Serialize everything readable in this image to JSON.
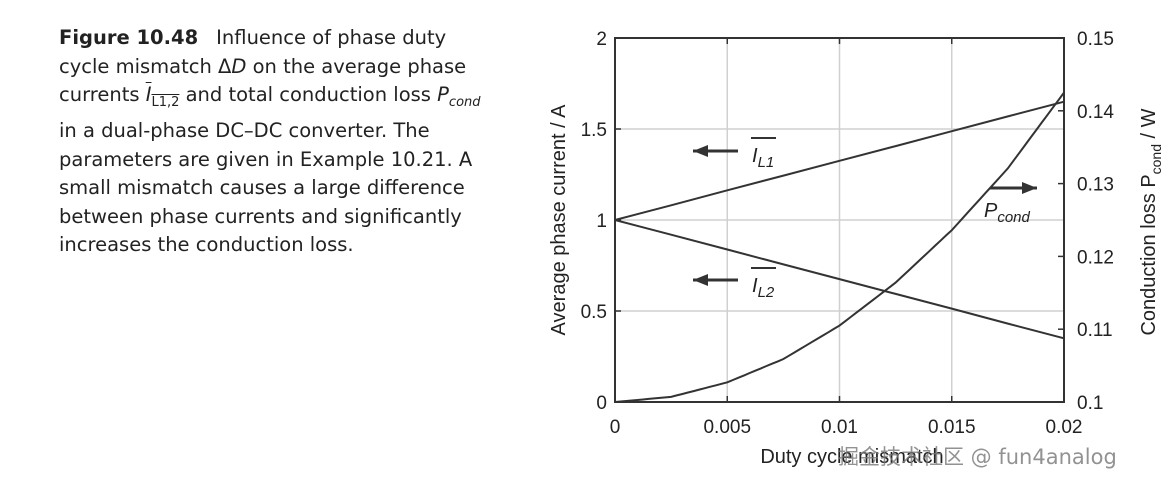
{
  "caption": {
    "figure_label": "Figure 10.48",
    "l1": "Influence of phase duty",
    "l2a": "cycle mismatch ",
    "l2_delta": "Δ",
    "l2_d": "D",
    "l2b": " on the average phase",
    "l3a": "currents ",
    "l3_i": "I",
    "l3_sub": "L1,2",
    "l3b": " and total conduction loss ",
    "l3_p": "P",
    "l3_psub": "cond",
    "l4": "in a dual-phase DC–DC converter. The",
    "l5": "parameters are given in Example 10.21. A",
    "l6": "small mismatch causes a large difference",
    "l7": "between phase currents and significantly",
    "l8": "increases the conduction loss."
  },
  "chart_data": {
    "type": "line",
    "x": [
      0,
      0.0025,
      0.005,
      0.0075,
      0.01,
      0.0125,
      0.015,
      0.0175,
      0.02
    ],
    "xlabel": "Duty cycle mismatch",
    "x_range": [
      0,
      0.02
    ],
    "x_ticks": [
      {
        "v": 0,
        "label": "0"
      },
      {
        "v": 0.005,
        "label": "0.005"
      },
      {
        "v": 0.01,
        "label": "0.01"
      },
      {
        "v": 0.015,
        "label": "0.015"
      },
      {
        "v": 0.02,
        "label": "0.02"
      }
    ],
    "ylabel_left": "Average phase current / A",
    "y_left_range": [
      0,
      2
    ],
    "y_left_ticks": [
      {
        "v": 0,
        "label": "0"
      },
      {
        "v": 0.5,
        "label": "0.5"
      },
      {
        "v": 1,
        "label": "1"
      },
      {
        "v": 1.5,
        "label": "1.5"
      },
      {
        "v": 2,
        "label": "2"
      }
    ],
    "ylabel_right_main": "Conduction loss P",
    "ylabel_right_sub": "cond",
    "ylabel_right_tail": " / W",
    "y_right_range": [
      0.1,
      0.15
    ],
    "y_right_ticks": [
      {
        "v": 0.1,
        "label": "0.1"
      },
      {
        "v": 0.11,
        "label": "0.11"
      },
      {
        "v": 0.12,
        "label": "0.12"
      },
      {
        "v": 0.13,
        "label": "0.13"
      },
      {
        "v": 0.14,
        "label": "0.14"
      },
      {
        "v": 0.15,
        "label": "0.15"
      }
    ],
    "grid": true,
    "series": [
      {
        "name": "I_L1",
        "axis": "left",
        "values": [
          1.0,
          1.081,
          1.163,
          1.244,
          1.325,
          1.406,
          1.488,
          1.569,
          1.65
        ],
        "label_main": "I",
        "label_sub": "L1"
      },
      {
        "name": "I_L2",
        "axis": "left",
        "values": [
          1.0,
          0.919,
          0.838,
          0.756,
          0.675,
          0.594,
          0.513,
          0.431,
          0.35
        ],
        "label_main": "I",
        "label_sub": "L2"
      },
      {
        "name": "P_cond",
        "axis": "right",
        "values": [
          0.1,
          0.1007,
          0.1027,
          0.1059,
          0.1105,
          0.1164,
          0.1236,
          0.1321,
          0.1425
        ],
        "label_main": "P",
        "label_sub": "cond"
      }
    ]
  },
  "watermark": "掘金技术社区 @ fun4analog",
  "colors": {
    "line": "#333333",
    "grid": "#d0d0d0",
    "text": "#222222"
  }
}
